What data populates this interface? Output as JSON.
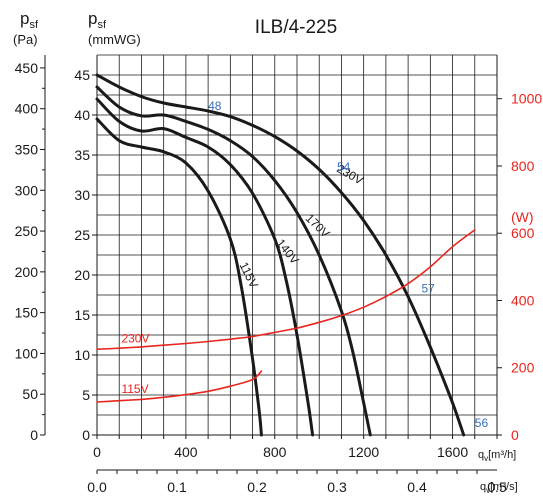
{
  "chart_data": {
    "type": "line",
    "title": "ILB/4-225",
    "y_left_pa": {
      "label_main": "p",
      "label_sub": "sf",
      "unit": "(Pa)",
      "min": 0,
      "max": 450,
      "step": 50,
      "ticks": [
        "0",
        "50",
        "100",
        "150",
        "200",
        "250",
        "300",
        "350",
        "400",
        "450"
      ]
    },
    "y_left_mmwg": {
      "label_main": "p",
      "label_sub": "sf",
      "unit": "(mmWG)",
      "min": 0,
      "max": 45,
      "step": 5,
      "ticks": [
        "0",
        "5",
        "10",
        "15",
        "20",
        "25",
        "30",
        "35",
        "40",
        "45"
      ]
    },
    "y_right_power": {
      "unit": "(W)",
      "min": 0,
      "max": 1100,
      "ticks": [
        "0",
        "200",
        "400",
        "600",
        "800",
        "1000"
      ],
      "tick_values": [
        0,
        200,
        400,
        600,
        800,
        1000
      ]
    },
    "x_flow_m3h": {
      "label": "q",
      "label_sub": "v",
      "unit": "[m³/h]",
      "min": 0,
      "max": 1800,
      "ticks": [
        "0",
        "400",
        "800",
        "1200",
        "1600"
      ],
      "tick_values": [
        0,
        400,
        800,
        1200,
        1600
      ]
    },
    "x_flow_m3s": {
      "label": "q",
      "label_sub": "v",
      "unit": "[m³/s]",
      "ticks": [
        "0.0",
        "0.1",
        "0.2",
        "0.3",
        "0.4",
        "0.5"
      ],
      "tick_values": [
        0.0,
        0.1,
        0.2,
        0.3,
        0.4,
        0.5
      ]
    },
    "grid": true,
    "series": [
      {
        "name": "230V",
        "axis": "pressure_mmwg",
        "color": "#1a1a1a",
        "points": [
          [
            0,
            45
          ],
          [
            100,
            43.5
          ],
          [
            200,
            42.3
          ],
          [
            300,
            41.5
          ],
          [
            400,
            41.0
          ],
          [
            500,
            40.5
          ],
          [
            600,
            39.8
          ],
          [
            700,
            38.7
          ],
          [
            800,
            37.3
          ],
          [
            900,
            35.5
          ],
          [
            1000,
            33.2
          ],
          [
            1100,
            30.3
          ],
          [
            1200,
            26.8
          ],
          [
            1300,
            22.5
          ],
          [
            1400,
            17.3
          ],
          [
            1500,
            11.0
          ],
          [
            1600,
            4.0
          ],
          [
            1650,
            0
          ]
        ]
      },
      {
        "name": "170V",
        "axis": "pressure_mmwg",
        "color": "#1a1a1a",
        "points": [
          [
            0,
            43.5
          ],
          [
            100,
            41.0
          ],
          [
            200,
            39.9
          ],
          [
            300,
            40.0
          ],
          [
            400,
            39.2
          ],
          [
            500,
            38.2
          ],
          [
            600,
            36.8
          ],
          [
            700,
            34.8
          ],
          [
            800,
            31.8
          ],
          [
            900,
            27.8
          ],
          [
            1000,
            22.5
          ],
          [
            1100,
            15.5
          ],
          [
            1150,
            10.5
          ],
          [
            1200,
            4.0
          ],
          [
            1230,
            0
          ]
        ]
      },
      {
        "name": "140V",
        "axis": "pressure_mmwg",
        "color": "#1a1a1a",
        "points": [
          [
            0,
            42.0
          ],
          [
            100,
            39.2
          ],
          [
            200,
            38.0
          ],
          [
            300,
            38.3
          ],
          [
            400,
            37.2
          ],
          [
            500,
            36.0
          ],
          [
            600,
            33.8
          ],
          [
            700,
            30.2
          ],
          [
            800,
            24.5
          ],
          [
            850,
            19.5
          ],
          [
            900,
            12.5
          ],
          [
            950,
            4.0
          ],
          [
            970,
            0
          ]
        ]
      },
      {
        "name": "115V",
        "axis": "pressure_mmwg",
        "color": "#1a1a1a",
        "points": [
          [
            0,
            39.5
          ],
          [
            100,
            36.8
          ],
          [
            200,
            36.0
          ],
          [
            300,
            35.4
          ],
          [
            400,
            34.0
          ],
          [
            500,
            30.5
          ],
          [
            600,
            24.5
          ],
          [
            650,
            18.5
          ],
          [
            700,
            9.5
          ],
          [
            730,
            3.0
          ],
          [
            740,
            0
          ]
        ]
      },
      {
        "name": "230V",
        "axis": "power_w",
        "color": "#e8251f",
        "points": [
          [
            0,
            255
          ],
          [
            100,
            258
          ],
          [
            200,
            262
          ],
          [
            300,
            267
          ],
          [
            400,
            272
          ],
          [
            500,
            278
          ],
          [
            600,
            285
          ],
          [
            700,
            293
          ],
          [
            800,
            305
          ],
          [
            900,
            318
          ],
          [
            1000,
            335
          ],
          [
            1100,
            355
          ],
          [
            1200,
            380
          ],
          [
            1300,
            412
          ],
          [
            1400,
            450
          ],
          [
            1500,
            500
          ],
          [
            1600,
            560
          ],
          [
            1700,
            610
          ]
        ]
      },
      {
        "name": "115V",
        "axis": "power_w",
        "color": "#e8251f",
        "points": [
          [
            0,
            98
          ],
          [
            100,
            102
          ],
          [
            200,
            106
          ],
          [
            300,
            112
          ],
          [
            400,
            120
          ],
          [
            500,
            130
          ],
          [
            600,
            145
          ],
          [
            700,
            165
          ],
          [
            740,
            190
          ]
        ]
      }
    ],
    "annotations": [
      {
        "text": "48",
        "x": 500,
        "y": 40.6,
        "color": "#3a6eb8"
      },
      {
        "text": "54",
        "x": 1080,
        "y": 33.0,
        "color": "#3a6eb8"
      },
      {
        "text": "57",
        "x": 1460,
        "y": 17.8,
        "color": "#3a6eb8"
      },
      {
        "text": "56",
        "x": 1700,
        "y": 1.0,
        "color": "#3a6eb8"
      }
    ]
  }
}
